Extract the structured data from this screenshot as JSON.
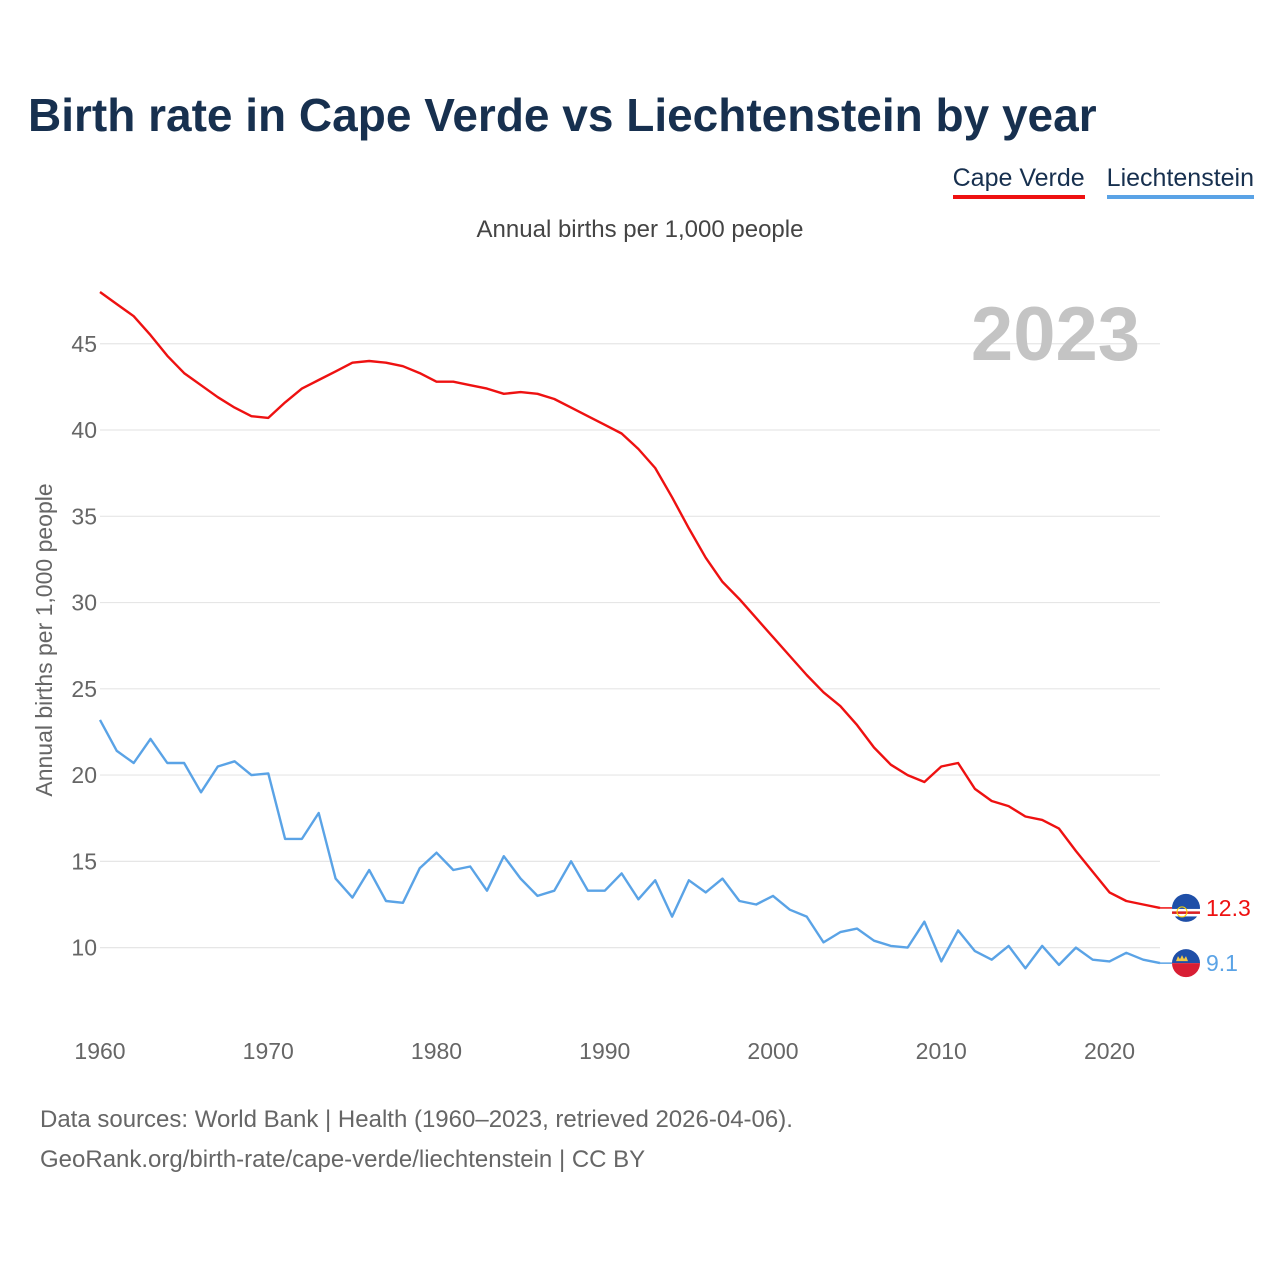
{
  "title": "Birth rate in Cape Verde vs Liechtenstein by year",
  "legend": {
    "cape_verde": "Cape Verde",
    "liechtenstein": "Liechtenstein"
  },
  "subtitle": "Annual births per 1,000 people",
  "footer": {
    "line1": "Data sources: World Bank | Health (1960–2023, retrieved 2026-04-06).",
    "line2": "GeoRank.org/birth-rate/cape-verde/liechtenstein | CC BY"
  },
  "chart_data": {
    "type": "line",
    "title": "Birth rate in Cape Verde vs Liechtenstein by year",
    "subtitle": "Annual births per 1,000 people",
    "xlabel": "",
    "ylabel": "Annual births per 1,000 people",
    "xlim": [
      1960,
      2023
    ],
    "ylim": [
      6.5,
      48
    ],
    "xticks": [
      1960,
      1970,
      1980,
      1990,
      2000,
      2010,
      2020
    ],
    "yticks": [
      10,
      15,
      20,
      25,
      30,
      35,
      40,
      45
    ],
    "grid": true,
    "legend_position": "top-right",
    "year_label": "2023",
    "x": [
      1960,
      1961,
      1962,
      1963,
      1964,
      1965,
      1966,
      1967,
      1968,
      1969,
      1970,
      1971,
      1972,
      1973,
      1974,
      1975,
      1976,
      1977,
      1978,
      1979,
      1980,
      1981,
      1982,
      1983,
      1984,
      1985,
      1986,
      1987,
      1988,
      1989,
      1990,
      1991,
      1992,
      1993,
      1994,
      1995,
      1996,
      1997,
      1998,
      1999,
      2000,
      2001,
      2002,
      2003,
      2004,
      2005,
      2006,
      2007,
      2008,
      2009,
      2010,
      2011,
      2012,
      2013,
      2014,
      2015,
      2016,
      2017,
      2018,
      2019,
      2020,
      2021,
      2022,
      2023
    ],
    "series": [
      {
        "name": "Cape Verde",
        "color": "#ee1111",
        "last_label": "12.3",
        "values": [
          48.0,
          47.3,
          46.6,
          45.5,
          44.3,
          43.3,
          42.6,
          41.9,
          41.3,
          40.8,
          40.7,
          41.6,
          42.4,
          42.9,
          43.4,
          43.9,
          44.0,
          43.9,
          43.7,
          43.3,
          42.8,
          42.8,
          42.6,
          42.4,
          42.1,
          42.2,
          42.1,
          41.8,
          41.3,
          40.8,
          40.3,
          39.8,
          38.9,
          37.8,
          36.1,
          34.3,
          32.6,
          31.2,
          30.2,
          29.1,
          28.0,
          26.9,
          25.8,
          24.8,
          24.0,
          22.9,
          21.6,
          20.6,
          20.0,
          19.6,
          20.5,
          20.7,
          19.2,
          18.5,
          18.2,
          17.6,
          17.4,
          16.9,
          15.6,
          14.4,
          13.2,
          12.7,
          12.5,
          12.3
        ]
      },
      {
        "name": "Liechtenstein",
        "color": "#5aa3e6",
        "last_label": "9.1",
        "values": [
          23.2,
          21.4,
          20.7,
          22.1,
          20.7,
          20.7,
          19.0,
          20.5,
          20.8,
          20.0,
          20.1,
          16.3,
          16.3,
          17.8,
          14.0,
          12.9,
          14.5,
          12.7,
          12.6,
          14.6,
          15.5,
          14.5,
          14.7,
          13.3,
          15.3,
          14.0,
          13.0,
          13.3,
          15.0,
          13.3,
          13.3,
          14.3,
          12.8,
          13.9,
          11.8,
          13.9,
          13.2,
          14.0,
          12.7,
          12.5,
          13.0,
          12.2,
          11.8,
          10.3,
          10.9,
          11.1,
          10.4,
          10.1,
          10.0,
          11.5,
          9.2,
          11.0,
          9.8,
          9.3,
          10.1,
          8.8,
          10.1,
          9.0,
          10.0,
          9.3,
          9.2,
          9.7,
          9.3,
          9.1
        ]
      }
    ]
  }
}
